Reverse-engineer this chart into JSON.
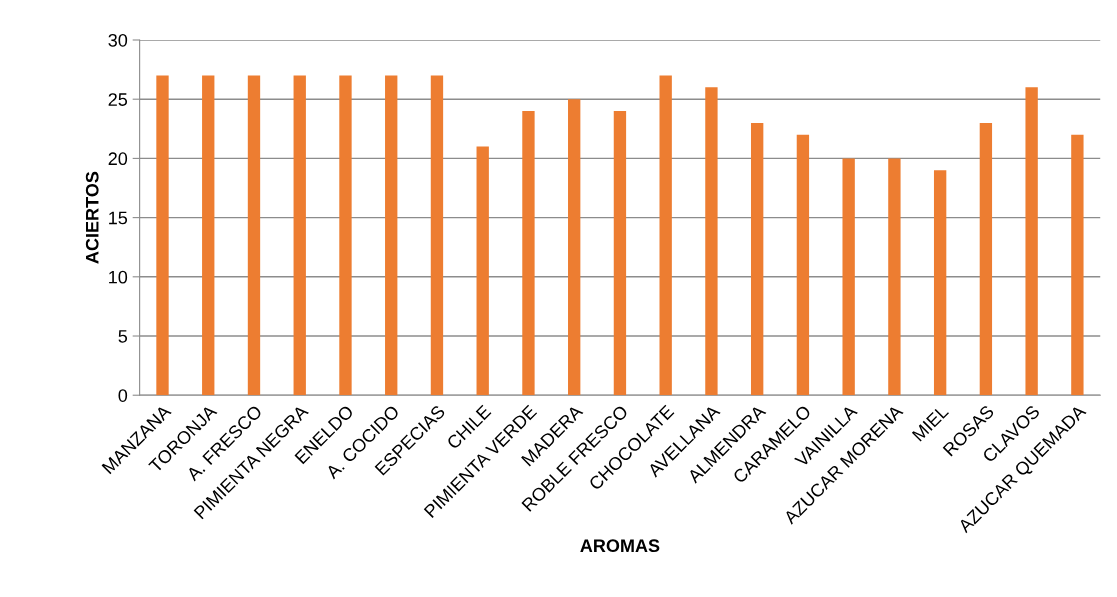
{
  "chart_data": {
    "type": "bar",
    "xlabel": "AROMAS",
    "ylabel": "ACIERTOS",
    "categories": [
      "MANZANA",
      "TORONJA",
      "A. FRESCO",
      "PIMIENTA NEGRA",
      "ENELDO",
      "A. COCIDO",
      "ESPECIAS",
      "CHILE",
      "PIMIENTA VERDE",
      "MADERA",
      "ROBLE FRESCO",
      "CHOCOLATE",
      "AVELLANA",
      "ALMENDRA",
      "CARAMELO",
      "VAINILLA",
      "AZUCAR MORENA",
      "MIEL",
      "ROSAS",
      "CLAVOS",
      "AZUCAR QUEMADA"
    ],
    "values": [
      27,
      27,
      27,
      27,
      27,
      27,
      27,
      21,
      24,
      25,
      24,
      27,
      26,
      23,
      22,
      20,
      20,
      19,
      23,
      26,
      22
    ],
    "color": "#ed7d31",
    "ylim": [
      0,
      30
    ],
    "yticks": [
      0,
      5,
      10,
      15,
      20,
      25,
      30
    ],
    "grid": "y",
    "legend": false
  }
}
